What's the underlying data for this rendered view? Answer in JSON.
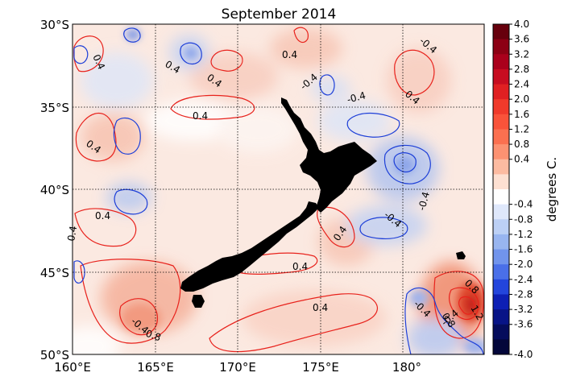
{
  "title": "September 2014",
  "lat_labels": [
    "30°S",
    "35°S",
    "40°S",
    "45°S",
    "50°S"
  ],
  "lon_labels": [
    "160°E",
    "165°E",
    "170°E",
    "175°E",
    "180°"
  ],
  "colorbar": {
    "label": "degrees C.",
    "ticks": [
      "4.0",
      "3.6",
      "3.2",
      "2.8",
      "2.4",
      "2.0",
      "1.6",
      "1.2",
      "0.8",
      "0.4",
      "-0.4",
      "-0.8",
      "-1.2",
      "-1.6",
      "-2.0",
      "-2.4",
      "-2.8",
      "-3.2",
      "-3.6",
      "-4.0"
    ],
    "colors": [
      "#67000d",
      "#8c0014",
      "#aa001c",
      "#c70d20",
      "#e02022",
      "#f03a2b",
      "#f9533a",
      "#fb7050",
      "#fc9272",
      "#fcbba1",
      "#fde0d2",
      "#ffffff",
      "#dfe8fb",
      "#bcd0f5",
      "#98b5f0",
      "#7194ec",
      "#4a6fe8",
      "#2345dc",
      "#0d1fb4",
      "#081487",
      "#050c5c",
      "#03073a"
    ]
  },
  "contour_labels": [
    "0.4",
    "0.4",
    "0.4",
    "0.4",
    "0.4",
    "0.4",
    "0.4",
    "0.4",
    "0.4",
    "0.4",
    "0.4",
    "0.4",
    "0.8",
    "0.8",
    "0.8",
    "1.2",
    "-0.4",
    "-0.4",
    "-0.4",
    "-0.4",
    "-0.4",
    "-0.4",
    "-0.4",
    "-0.4"
  ]
}
